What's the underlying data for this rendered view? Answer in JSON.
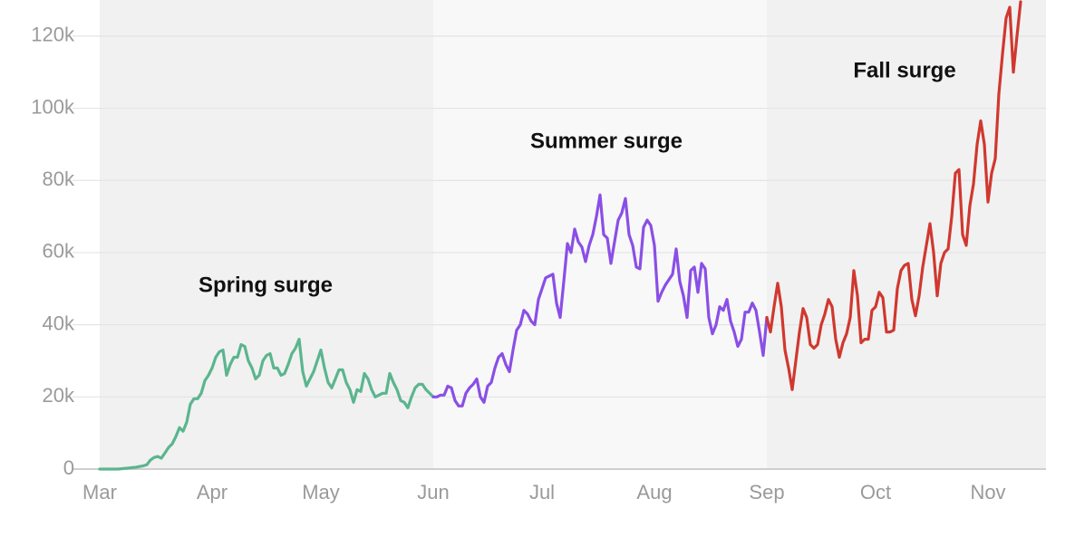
{
  "chart_data": {
    "type": "line",
    "categories": [
      "Mar",
      null,
      null,
      null,
      null,
      null,
      null,
      null,
      null,
      null,
      null,
      null,
      null,
      null,
      null,
      null,
      null,
      null,
      null,
      null,
      null,
      null,
      null,
      null,
      null,
      null,
      null,
      null,
      null,
      null,
      null,
      "Apr",
      null,
      null,
      null,
      null,
      null,
      null,
      null,
      null,
      null,
      null,
      null,
      null,
      null,
      null,
      null,
      null,
      null,
      null,
      null,
      null,
      null,
      null,
      null,
      null,
      null,
      null,
      null,
      null,
      null,
      "May",
      null,
      null,
      null,
      null,
      null,
      null,
      null,
      null,
      null,
      null,
      null,
      null,
      null,
      null,
      null,
      null,
      null,
      null,
      null,
      null,
      null,
      null,
      null,
      null,
      null,
      null,
      null,
      null,
      null,
      null,
      "Jun",
      null,
      null,
      null,
      null,
      null,
      null,
      null,
      null,
      null,
      null,
      null,
      null,
      null,
      null,
      null,
      null,
      null,
      null,
      null,
      null,
      null,
      null,
      null,
      null,
      null,
      null,
      null,
      null,
      null,
      "Jul",
      null,
      null,
      null,
      null,
      null,
      null,
      null,
      null,
      null,
      null,
      null,
      null,
      null,
      null,
      null,
      null,
      null,
      null,
      null,
      null,
      null,
      null,
      null,
      null,
      null,
      null,
      null,
      null,
      null,
      null,
      "Aug",
      null,
      null,
      null,
      null,
      null,
      null,
      null,
      null,
      null,
      null,
      null,
      null,
      null,
      null,
      null,
      null,
      null,
      null,
      null,
      null,
      null,
      null,
      null,
      null,
      null,
      null,
      null,
      null,
      null,
      null,
      "Sep",
      null,
      null,
      null,
      null,
      null,
      null,
      null,
      null,
      null,
      null,
      null,
      null,
      null,
      null,
      null,
      null,
      null,
      null,
      null,
      null,
      null,
      null,
      null,
      null,
      null,
      null,
      null,
      null,
      null,
      "Oct",
      null,
      null,
      null,
      null,
      null,
      null,
      null,
      null,
      null,
      null,
      null,
      null,
      null,
      null,
      null,
      null,
      null,
      null,
      null,
      null,
      null,
      null,
      null,
      null,
      null,
      null,
      null,
      null,
      null,
      null,
      "Nov",
      null,
      null,
      null,
      null,
      null,
      null,
      null,
      null,
      null
    ],
    "series": [
      {
        "name": "Spring surge",
        "color": "#5bb58e",
        "values": [
          0,
          0,
          0,
          0,
          0,
          0,
          100,
          200,
          300,
          400,
          500,
          700,
          900,
          1200,
          2500,
          3200,
          3500,
          3000,
          4500,
          6000,
          7000,
          9000,
          11500,
          10500,
          13000,
          18000,
          19500,
          19500,
          21000,
          24500,
          26000,
          28000,
          31000,
          32500,
          33000,
          26000,
          29000,
          31000,
          31000,
          34500,
          34000,
          30000,
          28000,
          25000,
          26000,
          30000,
          31500,
          32000,
          28000,
          28000,
          26000,
          26500,
          29000,
          32000,
          33500,
          36000,
          27000,
          23000,
          25000,
          27000,
          30000,
          33000,
          28000,
          24000,
          22500,
          25000,
          27500,
          27500,
          24000,
          22000,
          18500,
          22000,
          21500,
          26500,
          25000,
          22000,
          20000,
          20500,
          21000,
          21000,
          26500,
          24000,
          22000,
          19000,
          18500,
          17000,
          20000,
          22500,
          23500,
          23500,
          22000,
          21000,
          20000,
          null,
          null,
          null,
          null,
          null,
          null,
          null,
          null,
          null,
          null,
          null,
          null,
          null,
          null,
          null,
          null,
          null,
          null,
          null,
          null,
          null,
          null,
          null,
          null,
          null,
          null,
          null,
          null,
          null,
          null,
          null,
          null,
          null,
          null,
          null,
          null,
          null,
          null,
          null,
          null,
          null,
          null,
          null,
          null,
          null,
          null,
          null,
          null,
          null,
          null,
          null,
          null,
          null,
          null,
          null,
          null,
          null,
          null,
          null,
          null,
          null,
          null,
          null,
          null,
          null,
          null,
          null,
          null,
          null,
          null,
          null,
          null,
          null,
          null,
          null,
          null,
          null,
          null,
          null,
          null,
          null,
          null,
          null,
          null,
          null,
          null,
          null,
          null,
          null,
          null,
          null,
          null,
          null,
          null,
          null,
          null,
          null,
          null,
          null,
          null,
          null,
          null,
          null,
          null,
          null,
          null,
          null,
          null,
          null,
          null,
          null,
          null,
          null,
          null,
          null,
          null,
          null,
          null,
          null,
          null,
          null,
          null,
          null,
          null,
          null,
          null,
          null,
          null,
          null,
          null,
          null,
          null,
          null,
          null,
          null,
          null,
          null,
          null,
          null,
          null,
          null,
          null,
          null,
          null,
          null,
          null,
          null,
          null,
          null,
          null,
          null,
          null,
          null,
          null,
          null,
          null,
          null,
          null,
          null,
          null,
          null,
          null
        ]
      },
      {
        "name": "Summer surge",
        "color": "#8a4fe6",
        "values": [
          null,
          null,
          null,
          null,
          null,
          null,
          null,
          null,
          null,
          null,
          null,
          null,
          null,
          null,
          null,
          null,
          null,
          null,
          null,
          null,
          null,
          null,
          null,
          null,
          null,
          null,
          null,
          null,
          null,
          null,
          null,
          null,
          null,
          null,
          null,
          null,
          null,
          null,
          null,
          null,
          null,
          null,
          null,
          null,
          null,
          null,
          null,
          null,
          null,
          null,
          null,
          null,
          null,
          null,
          null,
          null,
          null,
          null,
          null,
          null,
          null,
          null,
          null,
          null,
          null,
          null,
          null,
          null,
          null,
          null,
          null,
          null,
          null,
          null,
          null,
          null,
          null,
          null,
          null,
          null,
          null,
          null,
          null,
          null,
          null,
          null,
          null,
          null,
          null,
          null,
          null,
          null,
          20000,
          20000,
          20500,
          20500,
          23000,
          22500,
          19000,
          17500,
          17500,
          21000,
          22500,
          23500,
          25000,
          20000,
          18500,
          23000,
          24000,
          28000,
          31000,
          32000,
          29000,
          27000,
          33000,
          38500,
          40000,
          44000,
          43000,
          41000,
          40000,
          47000,
          50000,
          53000,
          53500,
          54000,
          46000,
          42000,
          52000,
          62500,
          60000,
          66500,
          63000,
          61500,
          57500,
          62000,
          65000,
          70000,
          76000,
          65000,
          64000,
          57000,
          63000,
          69000,
          71000,
          75000,
          65000,
          62000,
          56000,
          55500,
          67000,
          69000,
          67500,
          62000,
          46500,
          49000,
          51000,
          52500,
          54000,
          61000,
          52000,
          48000,
          42000,
          55000,
          56000,
          49000,
          57000,
          55500,
          42000,
          37500,
          40000,
          45000,
          44000,
          47000,
          41000,
          38000,
          34000,
          36000,
          43500,
          43500,
          46000,
          44000,
          38000,
          31500,
          42000,
          null,
          null,
          null,
          null,
          null,
          null,
          null,
          null,
          null,
          null,
          null,
          null,
          null,
          null,
          null,
          null,
          null,
          null,
          null,
          null,
          null,
          null,
          null,
          null,
          null,
          null,
          null,
          null,
          null,
          null,
          null,
          null,
          null,
          null,
          null,
          null,
          null,
          null,
          null,
          null,
          null,
          null,
          null,
          null,
          null,
          null,
          null,
          null,
          null,
          null,
          null,
          null,
          null,
          null,
          null,
          null,
          null,
          null,
          null,
          null,
          null,
          null,
          null,
          null,
          null,
          null,
          null,
          null,
          null,
          null
        ]
      },
      {
        "name": "Fall surge",
        "color": "#d0382f",
        "values": [
          null,
          null,
          null,
          null,
          null,
          null,
          null,
          null,
          null,
          null,
          null,
          null,
          null,
          null,
          null,
          null,
          null,
          null,
          null,
          null,
          null,
          null,
          null,
          null,
          null,
          null,
          null,
          null,
          null,
          null,
          null,
          null,
          null,
          null,
          null,
          null,
          null,
          null,
          null,
          null,
          null,
          null,
          null,
          null,
          null,
          null,
          null,
          null,
          null,
          null,
          null,
          null,
          null,
          null,
          null,
          null,
          null,
          null,
          null,
          null,
          null,
          null,
          null,
          null,
          null,
          null,
          null,
          null,
          null,
          null,
          null,
          null,
          null,
          null,
          null,
          null,
          null,
          null,
          null,
          null,
          null,
          null,
          null,
          null,
          null,
          null,
          null,
          null,
          null,
          null,
          null,
          null,
          null,
          null,
          null,
          null,
          null,
          null,
          null,
          null,
          null,
          null,
          null,
          null,
          null,
          null,
          null,
          null,
          null,
          null,
          null,
          null,
          null,
          null,
          null,
          null,
          null,
          null,
          null,
          null,
          null,
          null,
          null,
          null,
          null,
          null,
          null,
          null,
          null,
          null,
          null,
          null,
          null,
          null,
          null,
          null,
          null,
          null,
          null,
          null,
          null,
          null,
          null,
          null,
          null,
          null,
          null,
          null,
          null,
          null,
          null,
          null,
          null,
          null,
          null,
          null,
          null,
          null,
          null,
          null,
          null,
          null,
          null,
          null,
          null,
          null,
          null,
          null,
          null,
          null,
          null,
          null,
          null,
          null,
          null,
          null,
          null,
          null,
          null,
          null,
          null,
          null,
          null,
          null,
          42000,
          38000,
          45000,
          51500,
          45000,
          33000,
          28000,
          22000,
          30000,
          38000,
          44500,
          42000,
          34500,
          33500,
          34500,
          40000,
          43000,
          47000,
          45000,
          36000,
          31000,
          35000,
          37500,
          42000,
          55000,
          48000,
          35000,
          36000,
          36000,
          44000,
          45000,
          49000,
          47500,
          38000,
          38000,
          38500,
          50000,
          55000,
          56500,
          57000,
          47000,
          42500,
          48000,
          56000,
          62000,
          68000,
          60000,
          48000,
          57000,
          60000,
          61000,
          70000,
          82000,
          83000,
          65000,
          62000,
          73000,
          79000,
          90000,
          96500,
          90000,
          74000,
          82000,
          86000,
          104000,
          115000,
          125000,
          128000,
          110000,
          120000,
          129500
        ]
      }
    ],
    "ylim": [
      0,
      130000
    ],
    "yticks": [
      0,
      {
        "value": 20000,
        "label": "20k"
      },
      {
        "value": 40000,
        "label": "40k"
      },
      {
        "value": 60000,
        "label": "60k"
      },
      {
        "value": 80000,
        "label": "80k"
      },
      {
        "value": 100000,
        "label": "100k"
      },
      {
        "value": 120000,
        "label": "120k"
      }
    ],
    "grid": true
  }
}
